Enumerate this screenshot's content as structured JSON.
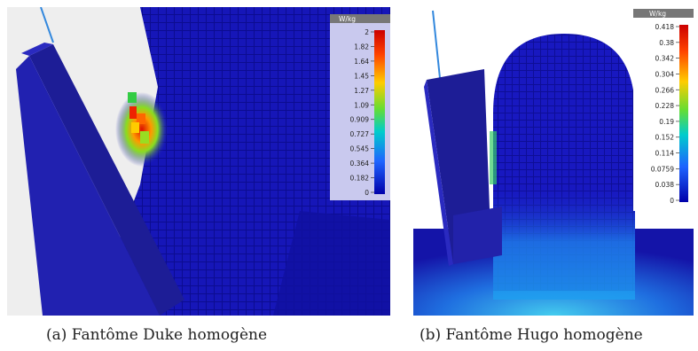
{
  "colors": {
    "phantom_blue": "#1414b4",
    "phone_blue": "#1a1a8c",
    "legend_bg": "#c9c9ee",
    "background": "#f2f2f2"
  },
  "panels": [
    {
      "caption": "(a) Fantôme Duke homogène",
      "legend": {
        "unit": "W/kg",
        "ticks": [
          "2",
          "1.82",
          "1.64",
          "1.45",
          "1.27",
          "1.09",
          "0.909",
          "0.727",
          "0.545",
          "0.364",
          "0.182",
          "0"
        ]
      }
    },
    {
      "caption": "(b) Fantôme Hugo homogène",
      "legend": {
        "unit": "W/kg",
        "ticks": [
          "0.418",
          "0.38",
          "0.342",
          "0.304",
          "0.266",
          "0.228",
          "0.19",
          "0.152",
          "0.114",
          "0.0759",
          "0.038",
          "0"
        ]
      }
    }
  ]
}
